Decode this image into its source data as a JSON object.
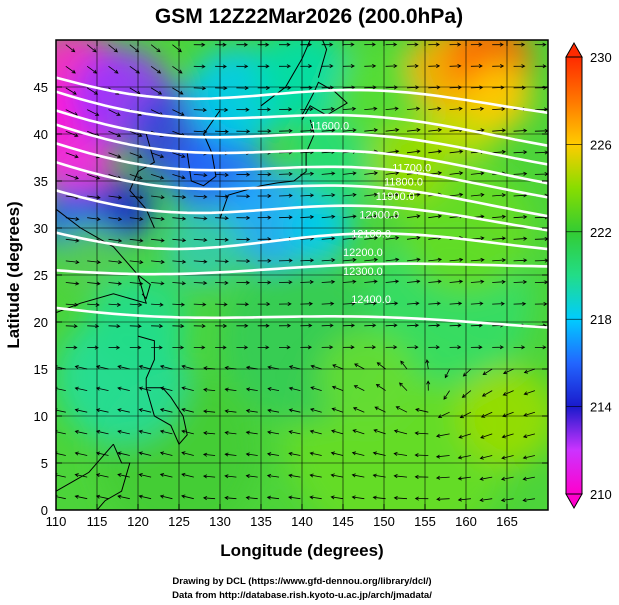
{
  "chart_data": {
    "type": "contour-map",
    "title": "GSM 12Z22Mar2026 (200.0hPa)",
    "xlabel": "Longitude (degrees)",
    "ylabel": "Latitude  (degrees)",
    "xlim": [
      110,
      170
    ],
    "ylim": [
      0,
      50
    ],
    "xticks": [
      110,
      115,
      120,
      125,
      130,
      135,
      140,
      145,
      150,
      155,
      160,
      165
    ],
    "yticks": [
      0,
      5,
      10,
      15,
      20,
      25,
      30,
      35,
      40,
      45
    ],
    "colorbar": {
      "label_ticks": [
        210,
        214,
        218,
        222,
        226,
        230
      ],
      "range": [
        210,
        230
      ],
      "colors": [
        "#ff00cc",
        "#cc33ff",
        "#1a1acc",
        "#2266ff",
        "#00ccff",
        "#22dd88",
        "#33cc33",
        "#88dd00",
        "#ffcc00",
        "#ff7700",
        "#ff2a00"
      ]
    },
    "contours": [
      {
        "level": "11600.0",
        "lat_at_start": 46.0,
        "lat_at_end": 42.5,
        "label_lon": 141,
        "label_lat": 40.5
      },
      {
        "level": "11700.0",
        "lat_at_start": 44.5,
        "lat_at_end": 39.0,
        "label_lon": 151,
        "label_lat": 36.0
      },
      {
        "level": "11800.0",
        "lat_at_start": 42.5,
        "lat_at_end": 37.0,
        "label_lon": 150,
        "label_lat": 34.5
      },
      {
        "level": "11900.0",
        "lat_at_start": 41.0,
        "lat_at_end": 35.0,
        "label_lon": 149,
        "label_lat": 33.0
      },
      {
        "level": "12000.0",
        "lat_at_start": 39.0,
        "lat_at_end": 33.5,
        "label_lon": 147,
        "label_lat": 31.0
      },
      {
        "level": "12100.0",
        "lat_at_start": 37.0,
        "lat_at_end": 31.5,
        "label_lon": 146,
        "label_lat": 29.0
      },
      {
        "level": "12200.0",
        "lat_at_start": 34.0,
        "lat_at_end": 30.0,
        "label_lon": 145,
        "label_lat": 27.0
      },
      {
        "level": "12300.0",
        "lat_at_start": 29.5,
        "lat_at_end": 28.0,
        "label_lon": 145,
        "label_lat": 25.0
      },
      {
        "level": "12400.0",
        "lat_at_start": 25.5,
        "lat_at_end": 26.0,
        "label_lon": 146,
        "label_lat": 22.0
      },
      {
        "level": "12400.0-south",
        "lat_at_start": 21.5,
        "lat_at_end": 19.5,
        "label_lon": null,
        "label_lat": null
      }
    ],
    "features": {
      "cold_core_min_temp": 210,
      "cold_core_location": "115E-135E, 30-40N",
      "warm_core_max_temp": 230,
      "warm_core_location": "160E, 46N",
      "anticyclone_center": "156E, 11N"
    }
  },
  "footer": {
    "line1": "Drawing by DCL (https://www.gfd-dennou.org/library/dcl/)",
    "line2": "Data from http://database.rish.kyoto-u.ac.jp/arch/jmadata/"
  }
}
